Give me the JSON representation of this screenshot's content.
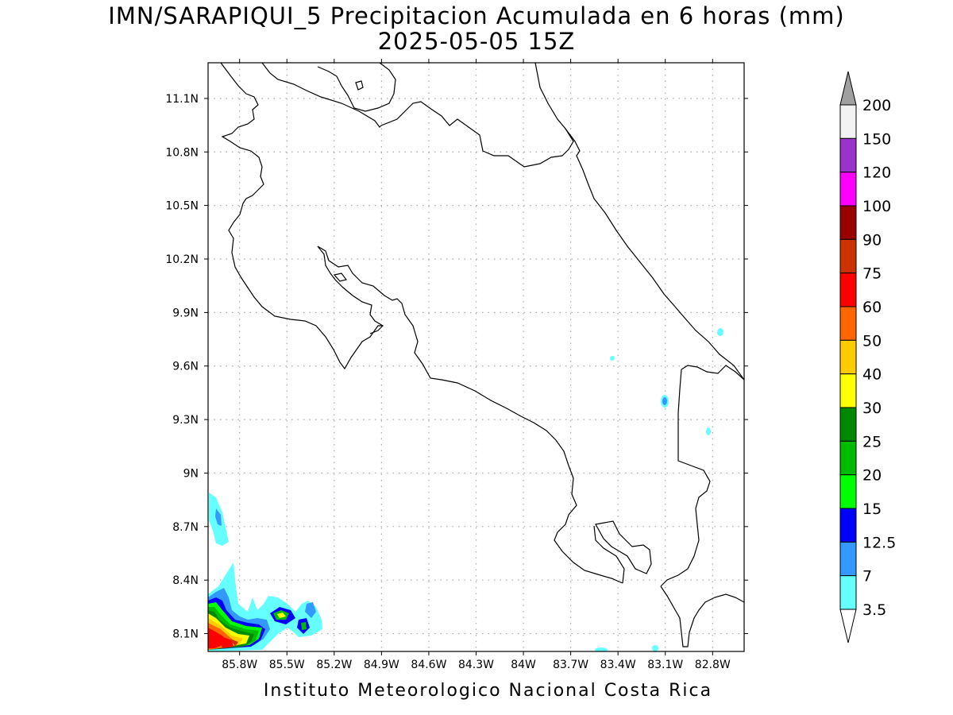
{
  "title": "IMN/SARAPIQUI_5 Precipitacion Acumulada en 6 horas (mm)",
  "subtitle": "2025-05-05 15Z",
  "credit": "Instituto Meteorologico Nacional Costa Rica",
  "map": {
    "lon_range": [
      -86.0,
      -82.6
    ],
    "lat_range": [
      8.0,
      11.3
    ],
    "lat_ticks": [
      {
        "label": "11.1N",
        "lat": 11.1
      },
      {
        "label": "10.8N",
        "lat": 10.8
      },
      {
        "label": "10.5N",
        "lat": 10.5
      },
      {
        "label": "10.2N",
        "lat": 10.2
      },
      {
        "label": "9.9N",
        "lat": 9.9
      },
      {
        "label": "9.6N",
        "lat": 9.6
      },
      {
        "label": "9.3N",
        "lat": 9.3
      },
      {
        "label": "9N",
        "lat": 9.0
      },
      {
        "label": "8.7N",
        "lat": 8.7
      },
      {
        "label": "8.4N",
        "lat": 8.4
      },
      {
        "label": "8.1N",
        "lat": 8.1
      }
    ],
    "lon_ticks": [
      {
        "label": "85.8W",
        "lon": -85.8
      },
      {
        "label": "85.5W",
        "lon": -85.5
      },
      {
        "label": "85.2W",
        "lon": -85.2
      },
      {
        "label": "84.9W",
        "lon": -84.9
      },
      {
        "label": "84.6W",
        "lon": -84.6
      },
      {
        "label": "84.3W",
        "lon": -84.3
      },
      {
        "label": "84W",
        "lon": -84.0
      },
      {
        "label": "83.7W",
        "lon": -83.7
      },
      {
        "label": "83.4W",
        "lon": -83.4
      },
      {
        "label": "83.1W",
        "lon": -83.1
      },
      {
        "label": "82.8W",
        "lon": -82.8
      }
    ],
    "grid": true
  },
  "colorbar": {
    "levels": [
      {
        "label": "200",
        "color": "#a0a0a0"
      },
      {
        "label": "150",
        "color": "#f2f2f2"
      },
      {
        "label": "120",
        "color": "#9933cc"
      },
      {
        "label": "100",
        "color": "#ff00ff"
      },
      {
        "label": "90",
        "color": "#990000"
      },
      {
        "label": "75",
        "color": "#cc3300"
      },
      {
        "label": "60",
        "color": "#ff0000"
      },
      {
        "label": "50",
        "color": "#ff6600"
      },
      {
        "label": "40",
        "color": "#ffcc00"
      },
      {
        "label": "30",
        "color": "#ffff00"
      },
      {
        "label": "25",
        "color": "#008800"
      },
      {
        "label": "20",
        "color": "#00bb00"
      },
      {
        "label": "15",
        "color": "#00ff00"
      },
      {
        "label": "12.5",
        "color": "#0000ff"
      },
      {
        "label": "7",
        "color": "#3399ff"
      },
      {
        "label": "3.5",
        "color": "#66ffff"
      }
    ],
    "bottom_color": "#ffffff"
  }
}
